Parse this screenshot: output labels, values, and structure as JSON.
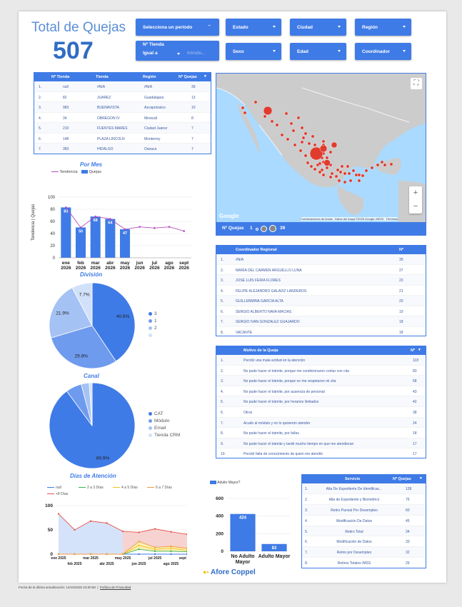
{
  "header": {
    "title": "Total de Quejas",
    "total": "507"
  },
  "filters": {
    "periodo": "Selecciona un período",
    "estado": "Estado",
    "ciudad": "Ciudad",
    "region": "Región",
    "tienda_label": "Nº Tienda",
    "tienda_op": "Igual a",
    "tienda_placeholder": "Introdu...",
    "sexo": "Sexo",
    "edad": "Edad",
    "coordinador": "Coordinador"
  },
  "tiendas": {
    "headers": [
      "Nº Tienda",
      "Tienda",
      "Región",
      "Nº Quejas"
    ],
    "rows": [
      [
        "1.",
        "null",
        "#N/A",
        "#N/A",
        "39"
      ],
      [
        "2.",
        "82",
        "JUAREZ",
        "Guadalajara",
        "13"
      ],
      [
        "3.",
        "983",
        "BUENAVISTA",
        "Azcapotzalco",
        "10"
      ],
      [
        "4.",
        "34",
        "OBREGON IV",
        "Mexicali",
        "8"
      ],
      [
        "5.",
        "210",
        "FUENTES MARES",
        "Ciudad Juarez",
        "7"
      ],
      [
        "6.",
        "148",
        "PLAZA LINCOLN",
        "Monterrey",
        "7"
      ],
      [
        "7.",
        "383",
        "HIDALGO",
        "Oaxaca",
        "7"
      ]
    ]
  },
  "map": {
    "attribution": "Combinaciones de teclas",
    "data_credit": "Datos del mapa ©2025 Google, INEGI",
    "terms": "Términos",
    "google": "Google",
    "legend_label": "Nº Quejas",
    "legend_min": "1",
    "legend_max": "39",
    "zoom_in": "+",
    "zoom_out": "−"
  },
  "por_mes": {
    "title": "Por Mes",
    "legend_trend": "Tendencia",
    "legend_bars": "Quejas",
    "ylabel": "Tendencia | Quejas"
  },
  "coordinadores": {
    "headers": [
      "Coordinador Regional",
      "Nº"
    ],
    "rows": [
      [
        "1.",
        "#N/A",
        "39"
      ],
      [
        "2.",
        "MARIA DEL CARMEN ARGUELLO LUNA",
        "27"
      ],
      [
        "3.",
        "JOSE LUIS FERIA FLORES",
        "23"
      ],
      [
        "4.",
        "FELIPE ALEJANDRO GALAVIZ LANDEROS",
        "21"
      ],
      [
        "5.",
        "GUILLERMINA GARCIA ALTA",
        "20"
      ],
      [
        "6.",
        "SERGIO ALBERTO NAVA MACIAS",
        "19"
      ],
      [
        "7.",
        "SERGIO IVAN GONZALEZ GUAJARDO",
        "18"
      ],
      [
        "8.",
        "VACANTE",
        "18"
      ]
    ]
  },
  "motivos": {
    "headers": [
      "Motivo de la Queja",
      "Nº"
    ],
    "rows": [
      [
        "1.",
        "Percibí una mala actitud en la atención",
        "118"
      ],
      [
        "2.",
        "No pude hacer el trámite, porque me condicionaron contar con cita",
        "83"
      ],
      [
        "3.",
        "No pude hacer el trámite, porque no me respetaron mi cita",
        "58"
      ],
      [
        "4.",
        "No pude hacer el trámite, por ausencia de personal",
        "43"
      ],
      [
        "5.",
        "No pude hacer el trámite, por horarios limitados",
        "42"
      ],
      [
        "6.",
        "Otros",
        "38"
      ],
      [
        "7.",
        "Acudo al módulo y no lo quisieron atender",
        "24"
      ],
      [
        "8.",
        "No pude hacer el trámite, por fallas",
        "18"
      ],
      [
        "9.",
        "No pude hacer el trámite y tardé mucho tiempo en que me atendieran",
        "17"
      ],
      [
        "10.",
        "Percibí falta de conocimiento de quien me atendió",
        "17"
      ]
    ]
  },
  "division": {
    "title": "División"
  },
  "canal": {
    "title": "Canal"
  },
  "dias": {
    "title": "Días de Atención"
  },
  "adulto": {
    "legend": "Adulto Mayor?"
  },
  "servicios": {
    "headers": [
      "Servicio",
      "Nº Quejas"
    ],
    "rows": [
      [
        "1.",
        "Alta De Expediente De Identificac...",
        "128"
      ],
      [
        "2.",
        "Alta de Expediente y Biométrico",
        "75"
      ],
      [
        "3.",
        "Retiro Parcial Por Desempleo",
        "60"
      ],
      [
        "4.",
        "Modificación De Datos",
        "45"
      ],
      [
        "5.",
        "Retiro Total",
        "34"
      ],
      [
        "6.",
        "Modificación de Datos",
        "33"
      ],
      [
        "7.",
        "Retiro por Desempleo",
        "32"
      ],
      [
        "8.",
        "Retiros Totales IMSS",
        "29"
      ]
    ]
  },
  "brand": "Afore Coppel",
  "footer": {
    "updated": "Fecha de la última actualización: 14/10/2025 23:00:58",
    "privacy": "Política de Privacidad"
  },
  "colors": {
    "accent": "#3f7be6",
    "header_text": "#5b8fd6",
    "trend": "#b44cc0",
    "map_dot": "#e03b2f"
  },
  "chart_data": [
    {
      "type": "bar",
      "title": "Por Mes",
      "categories": [
        "ene 2026",
        "feb 2026",
        "mar 2026",
        "abr 2026",
        "may 2026",
        "jun 2026",
        "jul 2026",
        "ago 2026",
        "sept 2026"
      ],
      "series": [
        {
          "name": "Quejas",
          "values": [
            83,
            50,
            68,
            64,
            47,
            null,
            null,
            null,
            null
          ]
        },
        {
          "name": "Tendencia",
          "values": [
            83,
            50,
            68,
            64,
            47,
            51,
            49,
            51,
            44
          ]
        }
      ],
      "data_labels": [
        "83",
        "50",
        "68",
        "64",
        "47"
      ],
      "ylabel": "Tendencia | Quejas",
      "yticks": [
        0,
        20,
        40,
        60,
        80,
        100
      ],
      "ylim": [
        0,
        100
      ]
    },
    {
      "type": "pie",
      "title": "División",
      "labels": [
        "3",
        "1",
        "2",
        ""
      ],
      "values": [
        40.6,
        29.8,
        21.9,
        7.7
      ],
      "value_labels": [
        "40.6%",
        "29.8%",
        "21.9%",
        "7.7%"
      ],
      "colors": [
        "#3f7be6",
        "#6f9bee",
        "#a5c2f4",
        "#d2e1fa"
      ]
    },
    {
      "type": "pie",
      "title": "Canal",
      "labels": [
        "CAT",
        "Módulo",
        "Email",
        "Tienda CRM"
      ],
      "values": [
        89.9,
        6.0,
        3.0,
        1.1
      ],
      "value_labels": [
        "89.9%"
      ],
      "colors": [
        "#3f7be6",
        "#6f9bee",
        "#a5c2f4",
        "#d2e1fa"
      ]
    },
    {
      "type": "area",
      "title": "Días de Atención",
      "x": [
        "ene 2025",
        "feb 2025",
        "mar 2025",
        "abr 2025",
        "may 2025",
        "jun 2025",
        "jul 2025",
        "ago 2025",
        "sept 2025"
      ],
      "xticks_top": [
        "ene 2025",
        "mar 2025",
        "may 2025",
        "jul 2025",
        "sept 2025"
      ],
      "xticks_bottom": [
        "feb 2025",
        "abr 2025",
        "jun 2025",
        "ago 2025"
      ],
      "yticks": [
        0,
        50,
        100
      ],
      "ylim": [
        0,
        100
      ],
      "series": [
        {
          "name": "null",
          "color": "#3f7be6",
          "values": [
            0,
            0,
            0,
            0,
            0,
            0,
            0,
            0,
            0
          ]
        },
        {
          "name": "2 a 3 Días",
          "color": "#3cb44b",
          "values": [
            0,
            0,
            0,
            0,
            0,
            10,
            6,
            6,
            5
          ]
        },
        {
          "name": "4 a 5 Días",
          "color": "#f2c521",
          "values": [
            0,
            0,
            0,
            0,
            0,
            18,
            10,
            12,
            8
          ]
        },
        {
          "name": "6 a 7 Días",
          "color": "#f59a3c",
          "values": [
            0,
            0,
            0,
            0,
            0,
            26,
            14,
            16,
            12
          ]
        },
        {
          "name": "+8 Días",
          "color": "#e8554d",
          "values": [
            83,
            50,
            68,
            64,
            47,
            45,
            52,
            46,
            41
          ]
        }
      ]
    },
    {
      "type": "bar",
      "title": "",
      "legend": "Adulto Mayor?",
      "categories": [
        "No Adulto Mayor",
        "Adulto Mayor"
      ],
      "values": [
        424,
        83
      ],
      "yticks": [
        0,
        200,
        400,
        600
      ],
      "ylim": [
        0,
        600
      ]
    }
  ]
}
